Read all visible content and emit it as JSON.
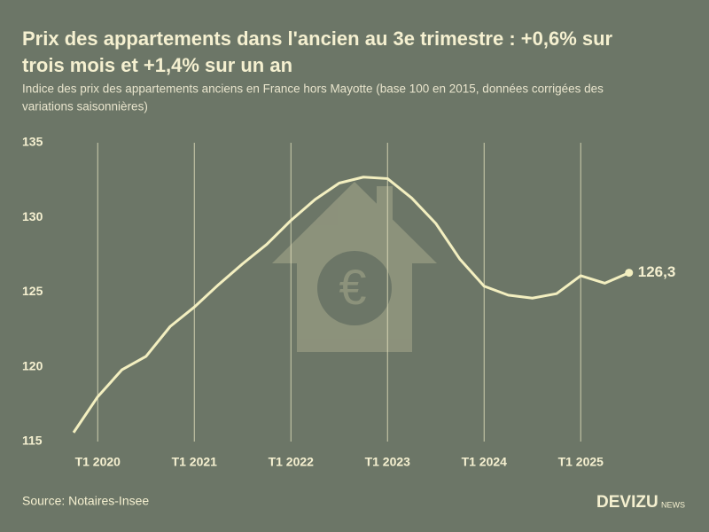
{
  "chart_data": {
    "type": "line",
    "title": [
      "Prix des appartements dans l'ancien au 3e trimestre : +0,6% sur",
      "trois mois et +1,4% sur un an"
    ],
    "subtitle": [
      "Indice des prix des appartements anciens en France hors Mayotte (base 100 en 2015, données corrigées des",
      "variations saisonnières)"
    ],
    "source": "Source: Notaires-Insee",
    "brand": "DEVIZU",
    "brand_suffix": "NEWS",
    "categories": [
      null,
      "T1 2020",
      null,
      null,
      null,
      "T1 2021",
      null,
      null,
      null,
      "T1 2022",
      null,
      null,
      null,
      "T1 2023",
      null,
      null,
      null,
      "T1 2024",
      null,
      null,
      null,
      "T1 2025",
      null,
      null
    ],
    "series": [
      {
        "name": "Indice",
        "color": "#f3efc0",
        "values": [
          115.6,
          118.0,
          119.8,
          120.7,
          122.7,
          124.0,
          125.5,
          126.9,
          128.2,
          129.8,
          131.2,
          132.3,
          132.7,
          132.6,
          131.3,
          129.6,
          127.2,
          125.4,
          124.8,
          124.6,
          124.9,
          126.1,
          125.6,
          126.3
        ],
        "value_labels": [
          null,
          null,
          null,
          null,
          null,
          null,
          null,
          null,
          null,
          null,
          null,
          null,
          null,
          null,
          null,
          null,
          null,
          null,
          null,
          null,
          null,
          null,
          null,
          "126,3"
        ]
      }
    ],
    "ylim": [
      115,
      135
    ],
    "yticks": [
      115,
      120,
      125,
      130,
      135
    ],
    "grid": true
  }
}
